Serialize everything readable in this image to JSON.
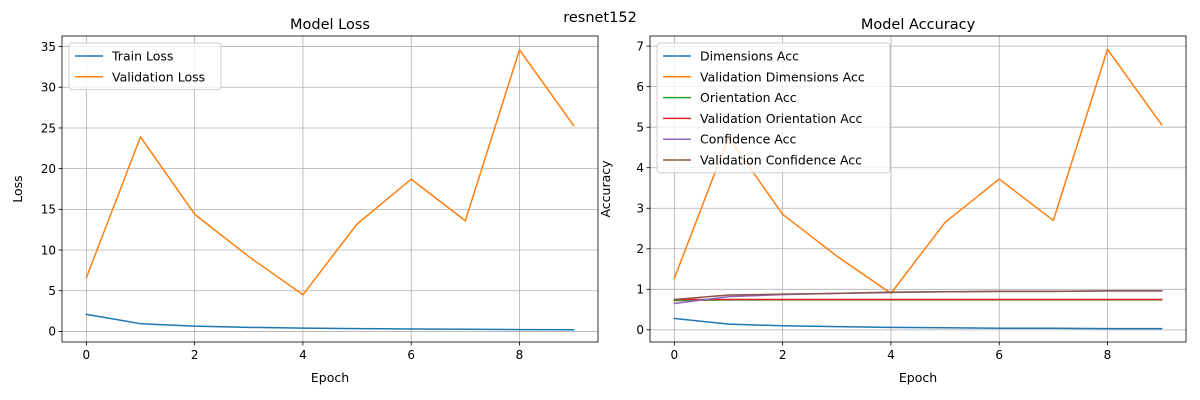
{
  "figure": {
    "suptitle": "resnet152"
  },
  "colors": {
    "blue": "#1f77b4",
    "orange": "#ff7f0e",
    "green": "#2ca02c",
    "red": "#d62728",
    "purple": "#9467bd",
    "brown": "#8c564b",
    "grid": "#b0b0b0"
  },
  "chart_data": [
    {
      "type": "line",
      "title": "Model Loss",
      "xlabel": "Epoch",
      "ylabel": "Loss",
      "xlim": [
        -0.45,
        9.45
      ],
      "ylim": [
        -1.3,
        36.3
      ],
      "xticks": [
        0,
        2,
        4,
        6,
        8
      ],
      "yticks": [
        0,
        5,
        10,
        15,
        20,
        25,
        30,
        35
      ],
      "grid": true,
      "legend_position": "upper left",
      "x": [
        0,
        1,
        2,
        3,
        4,
        5,
        6,
        7,
        8,
        9
      ],
      "series": [
        {
          "name": "Train Loss",
          "color": "blue",
          "values": [
            2.1,
            0.95,
            0.65,
            0.5,
            0.4,
            0.35,
            0.3,
            0.27,
            0.22,
            0.2
          ]
        },
        {
          "name": "Validation Loss",
          "color": "orange",
          "values": [
            6.6,
            23.9,
            14.4,
            9.2,
            4.5,
            13.2,
            18.7,
            13.6,
            34.6,
            25.3
          ]
        }
      ]
    },
    {
      "type": "line",
      "title": "Model Accuracy",
      "xlabel": "Epoch",
      "ylabel": "Accuracy",
      "xlim": [
        -0.45,
        9.45
      ],
      "ylim": [
        -0.3,
        7.25
      ],
      "xticks": [
        0,
        2,
        4,
        6,
        8
      ],
      "yticks": [
        0,
        1,
        2,
        3,
        4,
        5,
        6,
        7
      ],
      "grid": true,
      "legend_position": "upper left",
      "x": [
        0,
        1,
        2,
        3,
        4,
        5,
        6,
        7,
        8,
        9
      ],
      "series": [
        {
          "name": "Dimensions Acc",
          "color": "blue",
          "values": [
            0.28,
            0.14,
            0.1,
            0.08,
            0.06,
            0.05,
            0.04,
            0.04,
            0.03,
            0.03
          ]
        },
        {
          "name": "Validation Dimensions Acc",
          "color": "orange",
          "values": [
            1.27,
            4.75,
            2.85,
            1.82,
            0.9,
            2.65,
            3.72,
            2.7,
            6.92,
            5.06
          ]
        },
        {
          "name": "Orientation Acc",
          "color": "green",
          "values": [
            0.72,
            0.74,
            0.74,
            0.74,
            0.74,
            0.74,
            0.74,
            0.74,
            0.74,
            0.74
          ]
        },
        {
          "name": "Validation Orientation Acc",
          "color": "red",
          "values": [
            0.75,
            0.75,
            0.75,
            0.75,
            0.75,
            0.75,
            0.75,
            0.75,
            0.75,
            0.75
          ]
        },
        {
          "name": "Confidence Acc",
          "color": "purple",
          "values": [
            0.65,
            0.82,
            0.87,
            0.9,
            0.92,
            0.94,
            0.95,
            0.95,
            0.96,
            0.96
          ]
        },
        {
          "name": "Validation Confidence Acc",
          "color": "brown",
          "values": [
            0.75,
            0.86,
            0.88,
            0.9,
            0.93,
            0.94,
            0.95,
            0.95,
            0.96,
            0.96
          ]
        }
      ]
    }
  ]
}
